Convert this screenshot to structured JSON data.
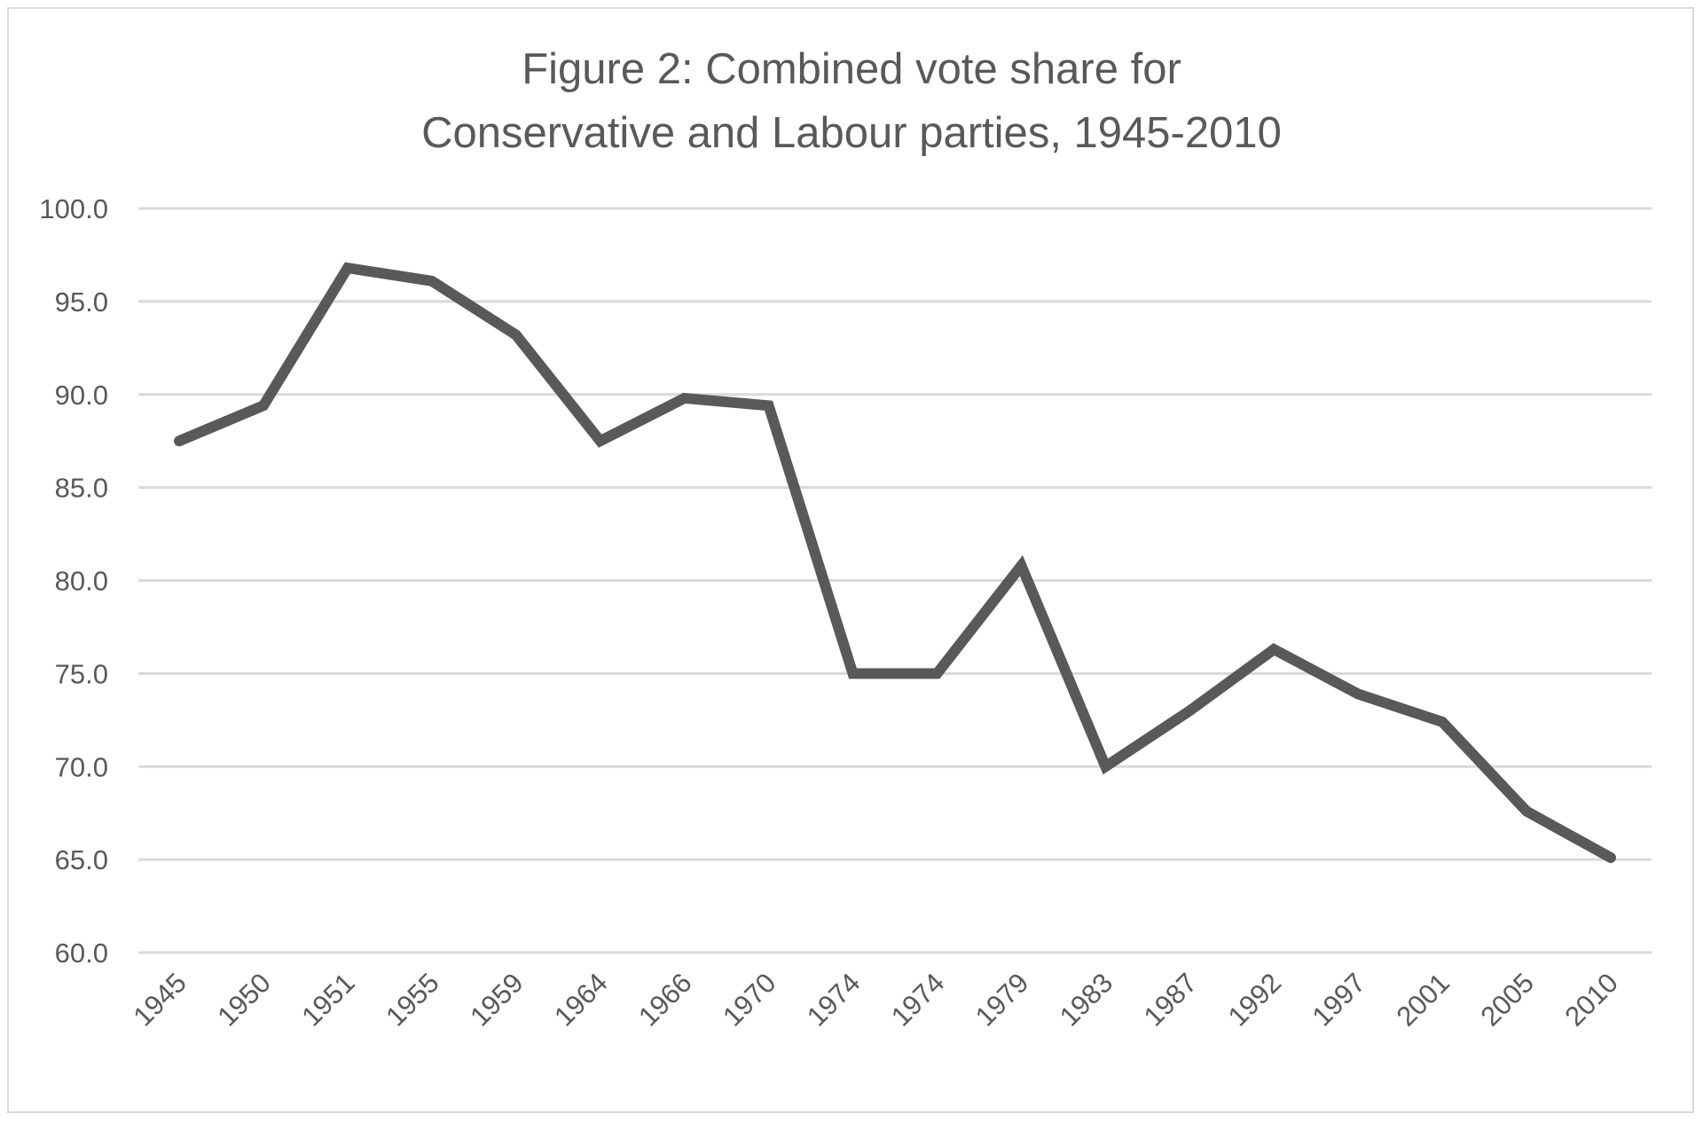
{
  "chart_data": {
    "type": "line",
    "title_lines": [
      "Figure 2: Combined vote share for",
      "Conservative and Labour parties, 1945-2010"
    ],
    "xlabel": "",
    "ylabel": "",
    "categories": [
      "1945",
      "1950",
      "1951",
      "1955",
      "1959",
      "1964",
      "1966",
      "1970",
      "1974",
      "1974",
      "1979",
      "1983",
      "1987",
      "1992",
      "1997",
      "2001",
      "2005",
      "2010"
    ],
    "series": [
      {
        "values": [
          87.5,
          89.4,
          96.8,
          96.1,
          93.2,
          87.5,
          89.8,
          89.4,
          75.0,
          75.0,
          80.8,
          70.0,
          73.0,
          76.3,
          73.9,
          72.4,
          67.6,
          65.1
        ],
        "color": "#595959"
      }
    ],
    "ylim": [
      60,
      100
    ],
    "yticks": [
      "60.0",
      "65.0",
      "70.0",
      "75.0",
      "80.0",
      "85.0",
      "90.0",
      "95.0",
      "100.0"
    ],
    "grid": true,
    "gridline_color": "#d9d9d9",
    "legend": "none"
  }
}
